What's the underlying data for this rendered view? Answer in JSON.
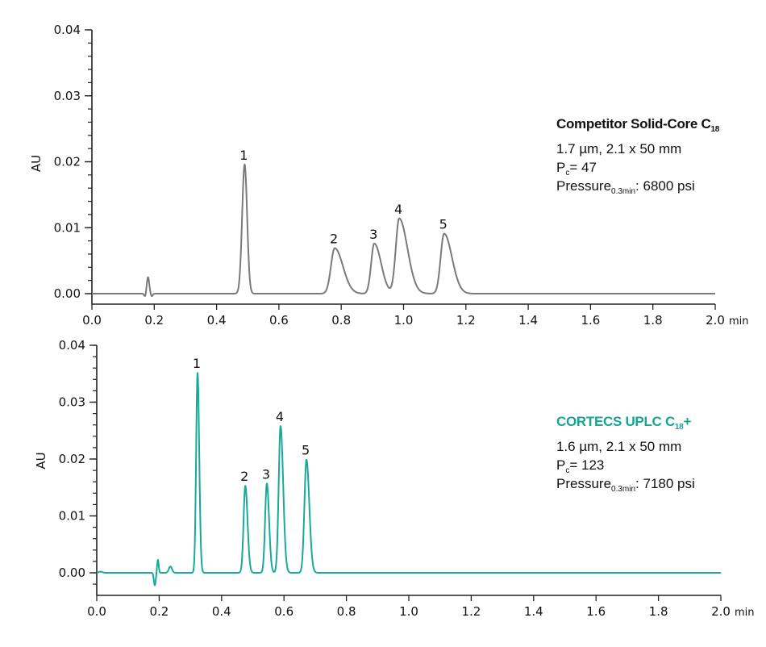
{
  "chart_data": [
    {
      "type": "line",
      "title": "Competitor Solid-Core C18",
      "title_main": "Competitor Solid-Core C",
      "title_sub": "18",
      "title_suffix": "",
      "title_color": "#111111",
      "line_color": "#7a7a7a",
      "details": {
        "particle": "1.7 µm, 2.1 x 50 mm",
        "pc_label": "P",
        "pc_sub": "c",
        "pc_value": "= 47",
        "pressure_label": "Pressure",
        "pressure_sub": "0.3min",
        "pressure_value": ": 6800 psi"
      },
      "xlabel": "min",
      "ylabel": "AU",
      "xlim": [
        0.0,
        2.0
      ],
      "ylim": [
        -0.001,
        0.04
      ],
      "x_ticks": [
        "0.0",
        "0.2",
        "0.4",
        "0.6",
        "0.8",
        "1.0",
        "1.2",
        "1.4",
        "1.6",
        "1.8",
        "2.0"
      ],
      "y_ticks": [
        "0.00",
        "0.01",
        "0.02",
        "0.03",
        "0.04"
      ],
      "y_minor_per_major": 4,
      "grid": false,
      "peaks": [
        {
          "label": "1",
          "x": 0.49,
          "y": 0.0196,
          "w": 0.008,
          "tail": 1.0
        },
        {
          "label": "2",
          "x": 0.779,
          "y": 0.0069,
          "w": 0.012,
          "tail": 2.2
        },
        {
          "label": "3",
          "x": 0.906,
          "y": 0.0076,
          "w": 0.01,
          "tail": 2.2
        },
        {
          "label": "4",
          "x": 0.986,
          "y": 0.0114,
          "w": 0.011,
          "tail": 2.4
        },
        {
          "label": "5",
          "x": 1.13,
          "y": 0.0091,
          "w": 0.011,
          "tail": 2.3
        }
      ],
      "baseline_disturbances": [
        {
          "x": 0.18,
          "y": 0.0025,
          "w": 0.004
        },
        {
          "x": 0.171,
          "y": -0.0005,
          "w": 0.003
        },
        {
          "x": 0.192,
          "y": -0.0004,
          "w": 0.003
        }
      ]
    },
    {
      "type": "line",
      "title": "CORTECS UPLC C18+",
      "title_main": "CORTECS UPLC C",
      "title_sub": "18",
      "title_suffix": "+",
      "title_color": "#17a593",
      "line_color": "#1aa89a",
      "details": {
        "particle": "1.6 µm, 2.1 x 50 mm",
        "pc_label": "P",
        "pc_sub": "c",
        "pc_value": "= 123",
        "pressure_label": "Pressure",
        "pressure_sub": "0.3min",
        "pressure_value": ": 7180 psi"
      },
      "xlabel": "min",
      "ylabel": "AU",
      "xlim": [
        0.0,
        2.0
      ],
      "ylim": [
        -0.004,
        0.04
      ],
      "x_ticks": [
        "0.0",
        "0.2",
        "0.4",
        "0.6",
        "0.8",
        "1.0",
        "1.2",
        "1.4",
        "1.6",
        "1.8",
        "2.0"
      ],
      "y_ticks": [
        "0.00",
        "0.01",
        "0.02",
        "0.03",
        "0.04"
      ],
      "y_minor_per_major": 4,
      "grid": false,
      "peaks": [
        {
          "label": "1",
          "x": 0.323,
          "y": 0.0352,
          "w": 0.0045,
          "tail": 1.2
        },
        {
          "label": "2",
          "x": 0.476,
          "y": 0.0153,
          "w": 0.0055,
          "tail": 1.3
        },
        {
          "label": "3",
          "x": 0.545,
          "y": 0.0157,
          "w": 0.0055,
          "tail": 1.3
        },
        {
          "label": "4",
          "x": 0.589,
          "y": 0.0258,
          "w": 0.006,
          "tail": 1.4
        },
        {
          "label": "5",
          "x": 0.672,
          "y": 0.0199,
          "w": 0.0065,
          "tail": 1.4
        }
      ],
      "baseline_disturbances": [
        {
          "x": 0.012,
          "y": 0.0002,
          "w": 0.006
        },
        {
          "x": 0.186,
          "y": -0.0022,
          "w": 0.003
        },
        {
          "x": 0.196,
          "y": 0.0023,
          "w": 0.0025
        },
        {
          "x": 0.236,
          "y": 0.0011,
          "w": 0.005
        }
      ]
    }
  ]
}
